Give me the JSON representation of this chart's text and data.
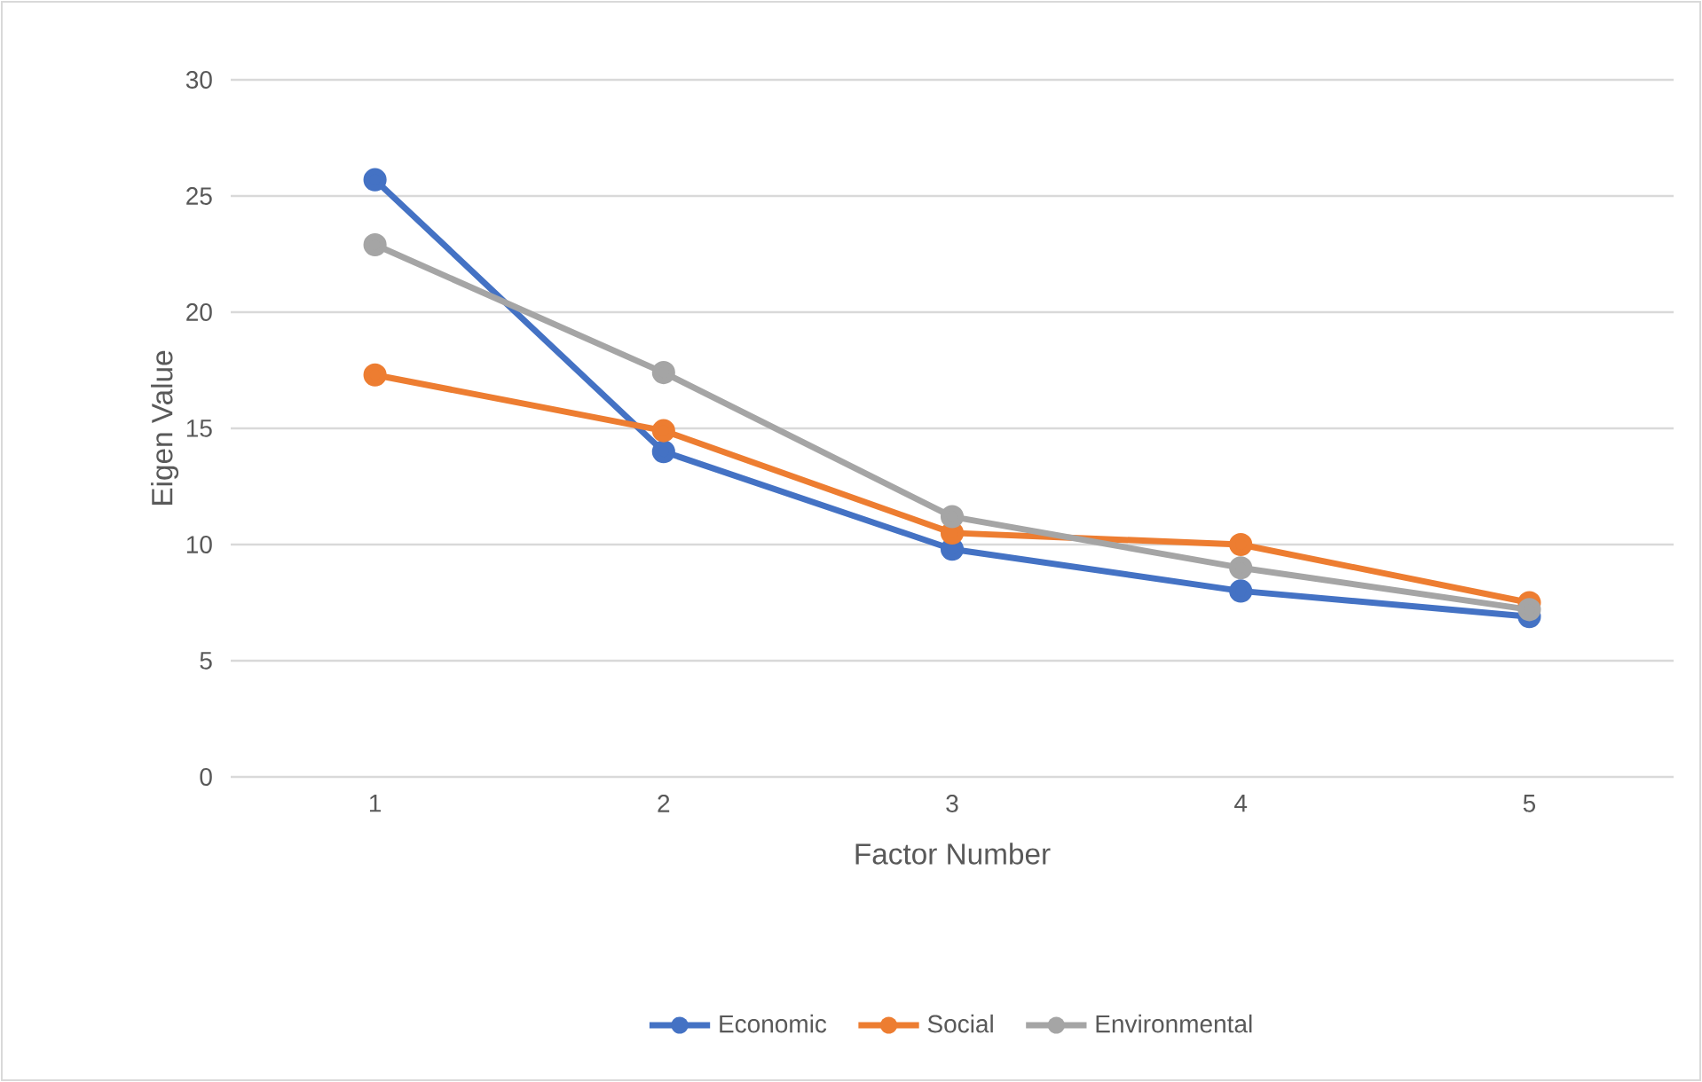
{
  "chart_data": {
    "type": "line",
    "xlabel": "Factor Number",
    "ylabel": "Eigen Value",
    "categories": [
      "1",
      "2",
      "3",
      "4",
      "5"
    ],
    "series": [
      {
        "name": "Economic",
        "color": "#4472c4",
        "values": [
          25.7,
          14.0,
          9.8,
          8.0,
          6.9
        ]
      },
      {
        "name": "Social",
        "color": "#ed7d31",
        "values": [
          17.3,
          14.9,
          10.5,
          10.0,
          7.5
        ]
      },
      {
        "name": "Environmental",
        "color": "#a5a5a5",
        "values": [
          22.9,
          17.4,
          11.2,
          9.0,
          7.2
        ]
      }
    ],
    "ylim": [
      0,
      30
    ],
    "yticks": [
      0,
      5,
      10,
      15,
      20,
      25,
      30
    ],
    "grid": "y",
    "legend": "bottom",
    "marker": "circle",
    "line_style": "solid"
  }
}
